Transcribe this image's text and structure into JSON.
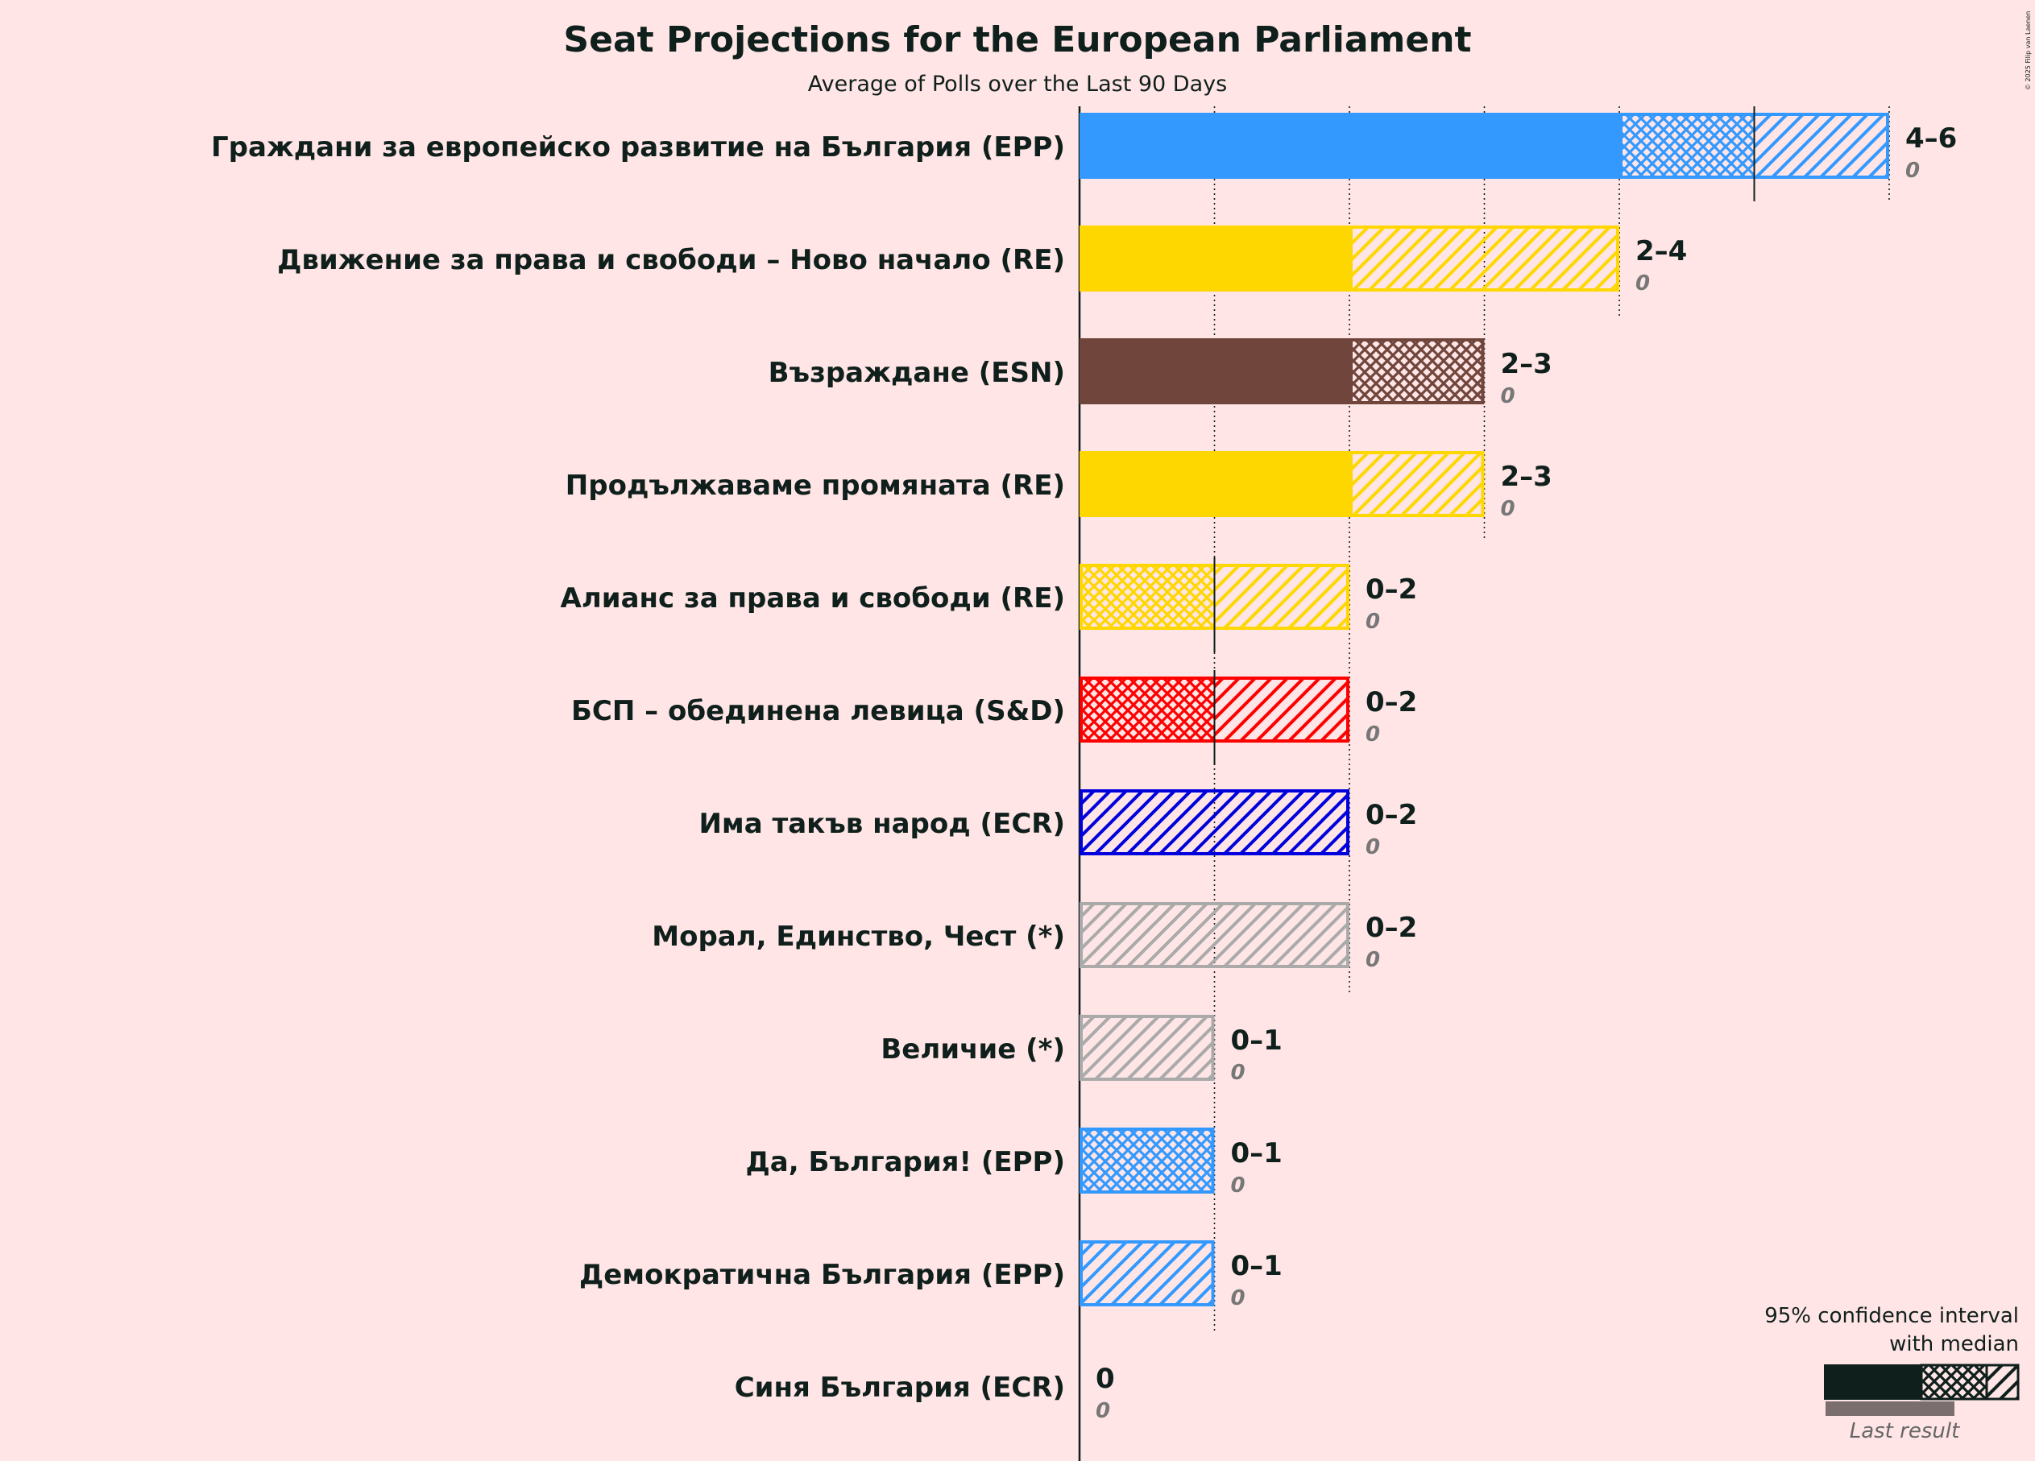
{
  "chart_data": {
    "type": "bar",
    "title": "Seat Projections for the European Parliament",
    "subtitle": "Average of Polls over the Last 90 Days",
    "copyright": "© 2025 Filip van Laenen",
    "xlim": [
      0,
      6
    ],
    "x_gridlines": [
      1,
      2,
      3,
      4,
      5,
      6
    ],
    "parties": [
      {
        "name": "Граждани за европейско развитие на България (EPP)",
        "color": "#3399FF",
        "solid": 4,
        "ci_low": 4,
        "median": 5,
        "ci_high": 6,
        "range_label": "4–6",
        "last_result": "0",
        "last": 0
      },
      {
        "name": "Движение за права и свободи – Ново начало (RE)",
        "color": "#FFD700",
        "solid": 2,
        "ci_low": 2,
        "median": 2,
        "ci_high": 4,
        "range_label": "2–4",
        "last_result": "0",
        "last": 0
      },
      {
        "name": "Възраждане (ESN)",
        "color": "#70463C",
        "solid": 2,
        "ci_low": 2,
        "median": 3,
        "ci_high": 3,
        "range_label": "2–3",
        "last_result": "0",
        "last": 0
      },
      {
        "name": "Продължаваме промяната (RE)",
        "color": "#FFD700",
        "solid": 2,
        "ci_low": 2,
        "median": 2,
        "ci_high": 3,
        "range_label": "2–3",
        "last_result": "0",
        "last": 0
      },
      {
        "name": "Алианс за права и свободи (RE)",
        "color": "#FFD700",
        "solid": 0,
        "ci_low": 0,
        "median": 1,
        "ci_high": 2,
        "range_label": "0–2",
        "last_result": "0",
        "last": 0
      },
      {
        "name": "БСП – обединена левица (S&D)",
        "color": "#FF0000",
        "solid": 0,
        "ci_low": 0,
        "median": 1,
        "ci_high": 2,
        "range_label": "0–2",
        "last_result": "0",
        "last": 0
      },
      {
        "name": "Има такъв народ (ECR)",
        "color": "#0000DD",
        "solid": 0,
        "ci_low": 0,
        "median": 0,
        "ci_high": 2,
        "range_label": "0–2",
        "last_result": "0",
        "last": 0
      },
      {
        "name": "Морал, Единство, Чест (*)",
        "color": "#AAAAAA",
        "solid": 0,
        "ci_low": 0,
        "median": 0,
        "ci_high": 2,
        "range_label": "0–2",
        "last_result": "0",
        "last": 0
      },
      {
        "name": "Величие (*)",
        "color": "#AAAAAA",
        "solid": 0,
        "ci_low": 0,
        "median": 0,
        "ci_high": 1,
        "range_label": "0–1",
        "last_result": "0",
        "last": 0
      },
      {
        "name": "Да, България! (EPP)",
        "color": "#3399FF",
        "solid": 0,
        "ci_low": 0,
        "median": 1,
        "ci_high": 1,
        "range_label": "0–1",
        "last_result": "0",
        "last": 0
      },
      {
        "name": "Демократична България (EPP)",
        "color": "#3399FF",
        "solid": 0,
        "ci_low": 0,
        "median": 0,
        "ci_high": 1,
        "range_label": "0–1",
        "last_result": "0",
        "last": 0
      },
      {
        "name": "Синя България (ECR)",
        "color": "#3399FF",
        "solid": 0,
        "ci_low": 0,
        "median": 0,
        "ci_high": 0,
        "range_label": "0",
        "last_result": "0",
        "last": 0
      }
    ],
    "legend": {
      "line1": "95% confidence interval",
      "line2": "with median",
      "last_result_label": "Last result",
      "placement": "bottom-right",
      "dark_color": "#0F1F1C",
      "last_color": "#7A6E6E"
    }
  }
}
